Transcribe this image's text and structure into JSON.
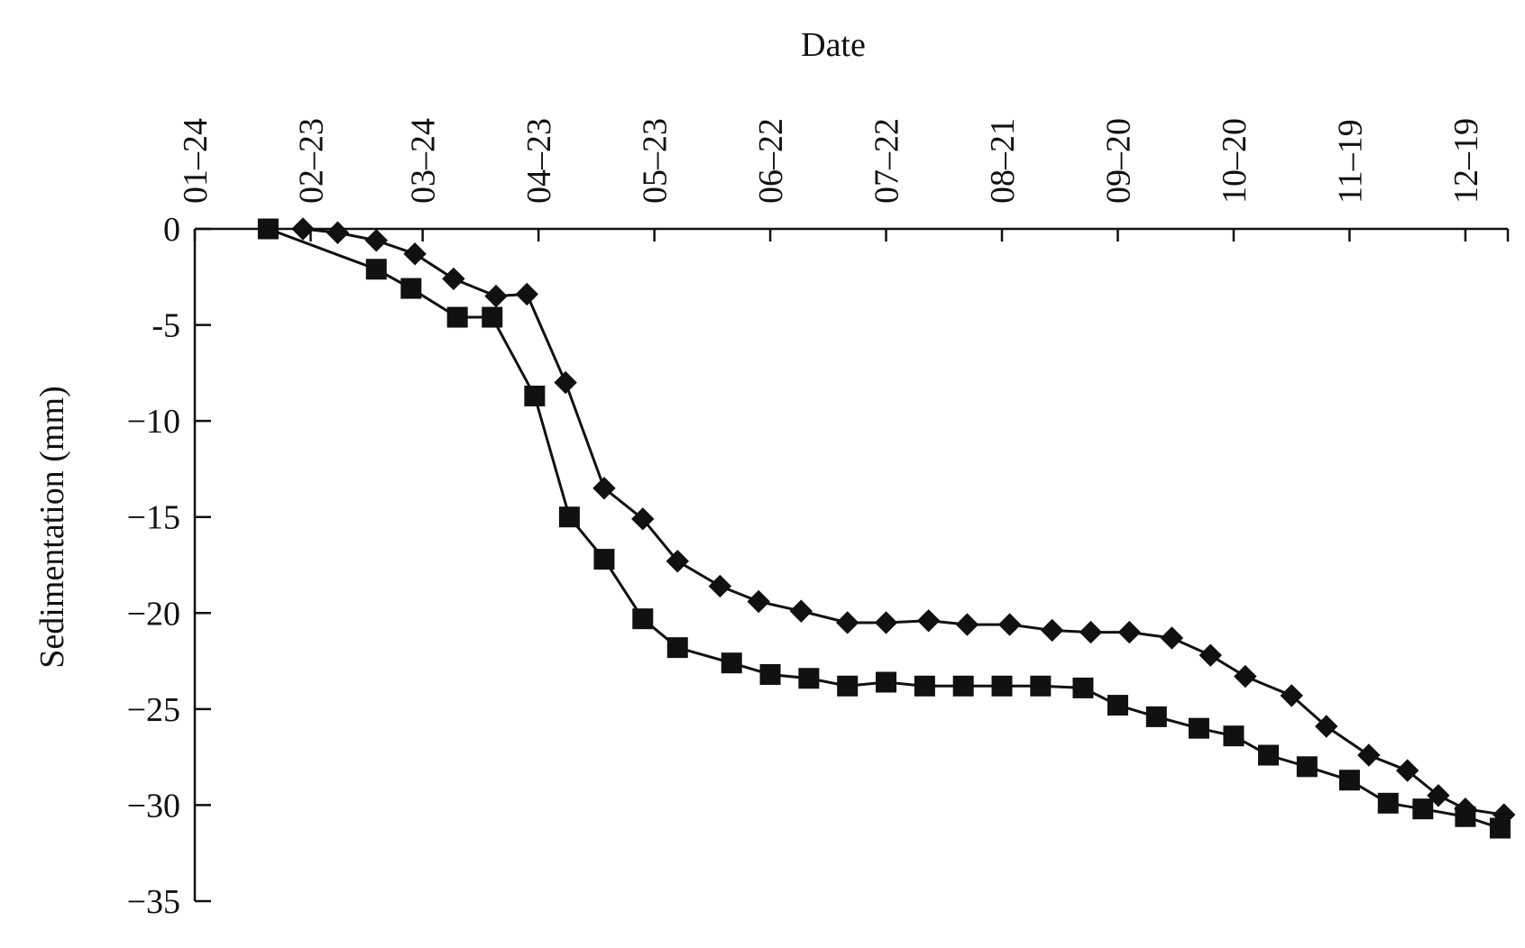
{
  "chart_data": {
    "type": "line",
    "title": "",
    "xlabel": "Date",
    "ylabel": "Sedimentation (mm)",
    "x_tick_labels": [
      "01–24",
      "02–23",
      "03–24",
      "04–23",
      "05–23",
      "06–22",
      "07–22",
      "08–21",
      "09–20",
      "10–20",
      "11–19",
      "12–19"
    ],
    "y_tick_labels": [
      "0",
      "-5",
      "−10",
      "−15",
      "−20",
      "−25",
      "−30",
      "−35"
    ],
    "y_ticks": [
      0,
      -5,
      -10,
      -15,
      -20,
      -25,
      -30,
      -35
    ],
    "ylim": [
      -35,
      0
    ],
    "xlim": [
      "01-24",
      "12-30"
    ],
    "x_axis_position": "top",
    "grid": false,
    "legend": "none",
    "series": [
      {
        "marker": "diamond",
        "x": [
          "02-21",
          "03-02",
          "03-12",
          "03-22",
          "04-01",
          "04-12",
          "04-20",
          "04-30",
          "05-10",
          "05-20",
          "05-29",
          "06-09",
          "06-19",
          "06-30",
          "07-12",
          "07-22",
          "08-02",
          "08-12",
          "08-23",
          "09-03",
          "09-13",
          "09-23",
          "10-04",
          "10-14",
          "10-23",
          "11-04",
          "11-13",
          "11-24",
          "12-04",
          "12-12",
          "12-19",
          "12-29"
        ],
        "values": [
          0,
          -0.2,
          -0.6,
          -1.3,
          -2.6,
          -3.5,
          -3.4,
          -8.0,
          -13.5,
          -15.1,
          -17.3,
          -18.6,
          -19.4,
          -19.9,
          -20.5,
          -20.5,
          -20.4,
          -20.6,
          -20.6,
          -20.9,
          -21.0,
          -21.0,
          -21.3,
          -22.2,
          -23.3,
          -24.3,
          -25.9,
          -27.4,
          -28.2,
          -29.5,
          -30.2,
          -30.5
        ]
      },
      {
        "marker": "square",
        "x": [
          "02-12",
          "03-12",
          "03-21",
          "04-02",
          "04-11",
          "04-22",
          "05-01",
          "05-10",
          "05-20",
          "05-29",
          "06-12",
          "06-22",
          "07-02",
          "07-12",
          "07-22",
          "08-01",
          "08-11",
          "08-21",
          "08-31",
          "09-11",
          "09-20",
          "09-30",
          "10-11",
          "10-20",
          "10-29",
          "11-08",
          "11-19",
          "11-29",
          "12-08",
          "12-19",
          "12-28"
        ],
        "values": [
          0,
          -2.1,
          -3.1,
          -4.6,
          -4.6,
          -8.7,
          -15.0,
          -17.2,
          -20.3,
          -21.8,
          -22.6,
          -23.2,
          -23.4,
          -23.8,
          -23.6,
          -23.8,
          -23.8,
          -23.8,
          -23.8,
          -23.9,
          -24.8,
          -25.4,
          -26.0,
          -26.4,
          -27.4,
          -28.0,
          -28.7,
          -29.9,
          -30.2,
          -30.6,
          -31.2
        ]
      }
    ]
  }
}
